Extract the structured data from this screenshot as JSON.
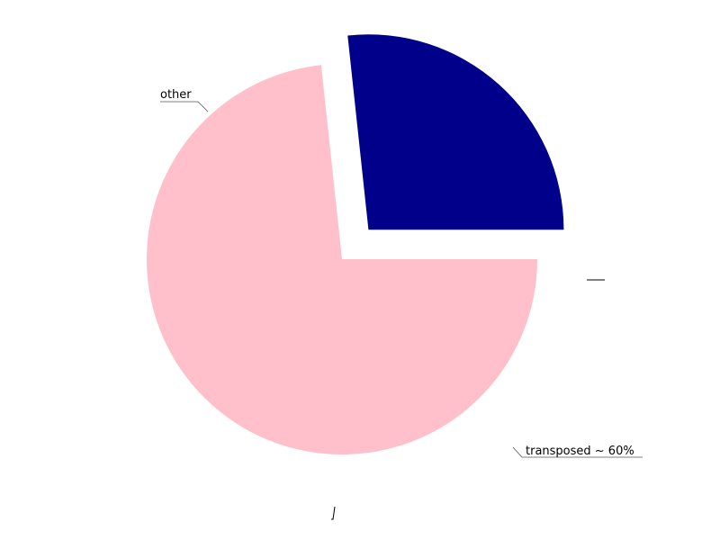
{
  "chart_data": {
    "type": "pie",
    "title": "",
    "slices": [
      {
        "label": "other",
        "value": 73.3,
        "color": "#FFC0CB",
        "exploded": false
      },
      {
        "label": "transposed ~ 60%",
        "value": 26.7,
        "color": "#00008B",
        "exploded": true
      }
    ],
    "start_angle_deg": 0,
    "direction": "clockwise",
    "legend": "none"
  }
}
